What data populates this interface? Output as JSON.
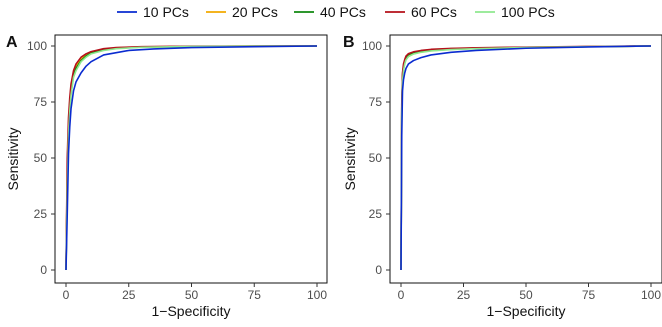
{
  "colors": {
    "10 PCs": "#0a2bd0",
    "20 PCs": "#f2a900",
    "40 PCs": "#118811",
    "60 PCs": "#b5101a",
    "100 PCs": "#8fe88f"
  },
  "legend": {
    "entries": [
      "10 PCs",
      "20 PCs",
      "40 PCs",
      "60 PCs",
      "100 PCs"
    ],
    "placement": "top"
  },
  "chart_data": [
    {
      "type": "line",
      "panel": "A",
      "xlabel": "1−Specificity",
      "ylabel": "Sensitivity",
      "xlim": [
        0,
        100
      ],
      "ylim": [
        0,
        100
      ],
      "xticks": [
        "0",
        "25",
        "50",
        "75",
        "100"
      ],
      "yticks": [
        "0",
        "25",
        "50",
        "75",
        "100"
      ],
      "grid": false,
      "series": [
        {
          "name": "10 PCs",
          "x": [
            0,
            0.5,
            1,
            1.5,
            2,
            3,
            4,
            6,
            8,
            10,
            15,
            20,
            25,
            35,
            50,
            75,
            100
          ],
          "y": [
            0,
            25,
            52,
            64,
            72,
            80,
            84,
            88,
            91,
            93,
            96,
            97,
            98,
            98.7,
            99.3,
            99.7,
            100
          ]
        },
        {
          "name": "20 PCs",
          "x": [
            0,
            0.5,
            1,
            1.5,
            2,
            3,
            4,
            6,
            8,
            10,
            15,
            20,
            30,
            50,
            75,
            100
          ],
          "y": [
            0,
            45,
            65,
            75,
            82,
            88,
            91,
            94,
            96,
            97,
            98.5,
            99.2,
            99.6,
            99.8,
            99.9,
            100
          ]
        },
        {
          "name": "40 PCs",
          "x": [
            0,
            0.5,
            1,
            1.5,
            2,
            3,
            4,
            6,
            8,
            10,
            15,
            20,
            30,
            50,
            75,
            100
          ],
          "y": [
            0,
            40,
            62,
            73,
            80,
            87,
            90,
            93.5,
            95.5,
            96.8,
            98.3,
            99,
            99.5,
            99.8,
            99.9,
            100
          ]
        },
        {
          "name": "60 PCs",
          "x": [
            0,
            0.5,
            1,
            1.5,
            2,
            3,
            4,
            6,
            8,
            10,
            15,
            20,
            30,
            50,
            75,
            100
          ],
          "y": [
            0,
            50,
            68,
            77,
            83,
            89,
            92,
            95,
            96.5,
            97.5,
            98.8,
            99.3,
            99.7,
            99.9,
            99.95,
            100
          ]
        },
        {
          "name": "100 PCs",
          "x": [
            0,
            0.5,
            1,
            1.5,
            2,
            3,
            4,
            6,
            8,
            10,
            15,
            20,
            30,
            50,
            75,
            100
          ],
          "y": [
            0,
            35,
            60,
            71,
            78,
            86,
            89,
            93,
            95,
            96.5,
            98,
            98.8,
            99.4,
            99.8,
            99.9,
            100
          ]
        }
      ]
    },
    {
      "type": "line",
      "panel": "B",
      "xlabel": "1−Specificity",
      "ylabel": "Sensitivity",
      "xlim": [
        0,
        100
      ],
      "ylim": [
        0,
        100
      ],
      "xticks": [
        "0",
        "25",
        "50",
        "75",
        "100"
      ],
      "yticks": [
        "0",
        "25",
        "50",
        "75",
        "100"
      ],
      "grid": false,
      "series": [
        {
          "name": "10 PCs",
          "x": [
            0,
            0.3,
            0.6,
            1,
            1.5,
            2,
            3,
            5,
            8,
            12,
            20,
            30,
            50,
            75,
            100
          ],
          "y": [
            0,
            60,
            80,
            85,
            88,
            90,
            92,
            93.5,
            94.8,
            96,
            97.2,
            98,
            99,
            99.6,
            100
          ]
        },
        {
          "name": "20 PCs",
          "x": [
            0,
            0.3,
            0.6,
            1,
            1.5,
            2,
            3,
            5,
            8,
            12,
            20,
            30,
            50,
            75,
            100
          ],
          "y": [
            0,
            70,
            85,
            90,
            92.5,
            94,
            95.5,
            96.5,
            97.3,
            97.9,
            98.5,
            98.9,
            99.3,
            99.7,
            100
          ]
        },
        {
          "name": "40 PCs",
          "x": [
            0,
            0.3,
            0.6,
            1,
            1.5,
            2,
            3,
            5,
            8,
            12,
            20,
            30,
            50,
            75,
            100
          ],
          "y": [
            0,
            72,
            87,
            91,
            93.5,
            95,
            96.2,
            97.1,
            97.8,
            98.3,
            98.8,
            99.1,
            99.4,
            99.7,
            100
          ]
        },
        {
          "name": "60 PCs",
          "x": [
            0,
            0.3,
            0.6,
            1,
            1.5,
            2,
            3,
            5,
            8,
            12,
            20,
            30,
            50,
            75,
            100
          ],
          "y": [
            0,
            74,
            88,
            92,
            94,
            95.5,
            96.6,
            97.4,
            98,
            98.5,
            98.9,
            99.2,
            99.5,
            99.8,
            100
          ]
        },
        {
          "name": "100 PCs",
          "x": [
            0,
            0.3,
            0.6,
            1,
            1.5,
            2,
            3,
            5,
            8,
            12,
            20,
            30,
            50,
            75,
            100
          ],
          "y": [
            0,
            68,
            84,
            89,
            92,
            93.8,
            95.3,
            96.4,
            97.2,
            97.8,
            98.4,
            98.8,
            99.3,
            99.7,
            100
          ]
        }
      ]
    }
  ]
}
